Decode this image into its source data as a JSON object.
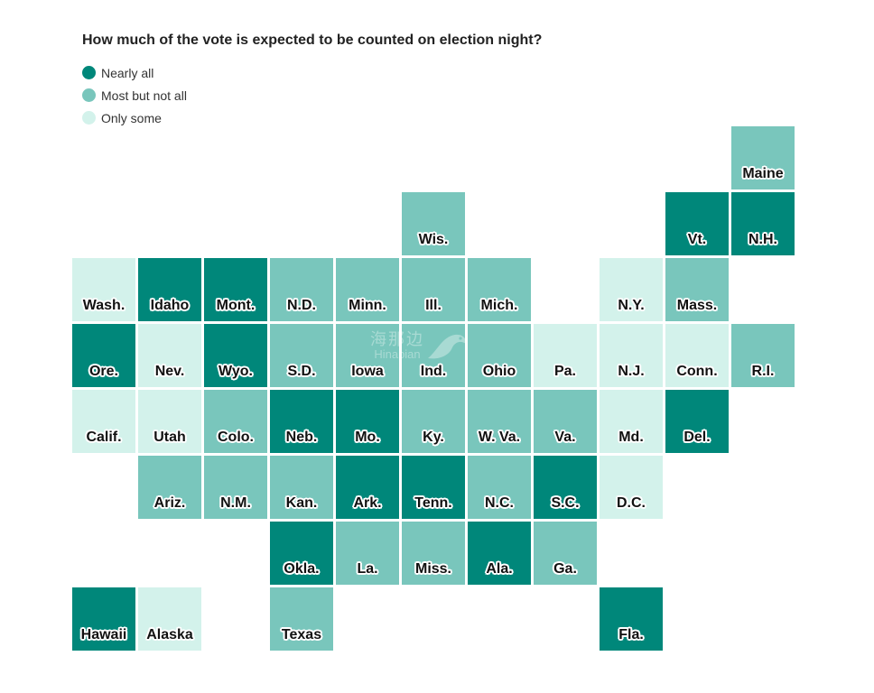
{
  "title": "How much of the vote is expected to be counted on election night?",
  "colors": {
    "nearly_all": "#00877a",
    "most": "#79c6bc",
    "some": "#d3f2eb"
  },
  "legend": [
    {
      "label": "Nearly all",
      "color": "#00877a"
    },
    {
      "label": "Most but not all",
      "color": "#79c6bc"
    },
    {
      "label": "Only some",
      "color": "#d3f2eb"
    }
  ],
  "watermark": {
    "text_cn": "海那边",
    "text_en": "Hinabian"
  },
  "states": [
    {
      "label": "Maine",
      "row": 0,
      "col": 10,
      "level": "most"
    },
    {
      "label": "Wis.",
      "row": 1,
      "col": 5,
      "level": "most"
    },
    {
      "label": "Vt.",
      "row": 1,
      "col": 9,
      "level": "nearly_all"
    },
    {
      "label": "N.H.",
      "row": 1,
      "col": 10,
      "level": "nearly_all"
    },
    {
      "label": "Wash.",
      "row": 2,
      "col": 0,
      "level": "some"
    },
    {
      "label": "Idaho",
      "row": 2,
      "col": 1,
      "level": "nearly_all"
    },
    {
      "label": "Mont.",
      "row": 2,
      "col": 2,
      "level": "nearly_all"
    },
    {
      "label": "N.D.",
      "row": 2,
      "col": 3,
      "level": "most"
    },
    {
      "label": "Minn.",
      "row": 2,
      "col": 4,
      "level": "most"
    },
    {
      "label": "Ill.",
      "row": 2,
      "col": 5,
      "level": "most"
    },
    {
      "label": "Mich.",
      "row": 2,
      "col": 6,
      "level": "most"
    },
    {
      "label": "N.Y.",
      "row": 2,
      "col": 8,
      "level": "some"
    },
    {
      "label": "Mass.",
      "row": 2,
      "col": 9,
      "level": "most"
    },
    {
      "label": "Ore.",
      "row": 3,
      "col": 0,
      "level": "nearly_all"
    },
    {
      "label": "Nev.",
      "row": 3,
      "col": 1,
      "level": "some"
    },
    {
      "label": "Wyo.",
      "row": 3,
      "col": 2,
      "level": "nearly_all"
    },
    {
      "label": "S.D.",
      "row": 3,
      "col": 3,
      "level": "most"
    },
    {
      "label": "Iowa",
      "row": 3,
      "col": 4,
      "level": "most"
    },
    {
      "label": "Ind.",
      "row": 3,
      "col": 5,
      "level": "most"
    },
    {
      "label": "Ohio",
      "row": 3,
      "col": 6,
      "level": "most"
    },
    {
      "label": "Pa.",
      "row": 3,
      "col": 7,
      "level": "some"
    },
    {
      "label": "N.J.",
      "row": 3,
      "col": 8,
      "level": "some"
    },
    {
      "label": "Conn.",
      "row": 3,
      "col": 9,
      "level": "some"
    },
    {
      "label": "R.I.",
      "row": 3,
      "col": 10,
      "level": "most"
    },
    {
      "label": "Calif.",
      "row": 4,
      "col": 0,
      "level": "some"
    },
    {
      "label": "Utah",
      "row": 4,
      "col": 1,
      "level": "some"
    },
    {
      "label": "Colo.",
      "row": 4,
      "col": 2,
      "level": "most"
    },
    {
      "label": "Neb.",
      "row": 4,
      "col": 3,
      "level": "nearly_all"
    },
    {
      "label": "Mo.",
      "row": 4,
      "col": 4,
      "level": "nearly_all"
    },
    {
      "label": "Ky.",
      "row": 4,
      "col": 5,
      "level": "most"
    },
    {
      "label": "W. Va.",
      "row": 4,
      "col": 6,
      "level": "most"
    },
    {
      "label": "Va.",
      "row": 4,
      "col": 7,
      "level": "most"
    },
    {
      "label": "Md.",
      "row": 4,
      "col": 8,
      "level": "some"
    },
    {
      "label": "Del.",
      "row": 4,
      "col": 9,
      "level": "nearly_all"
    },
    {
      "label": "Ariz.",
      "row": 5,
      "col": 1,
      "level": "most"
    },
    {
      "label": "N.M.",
      "row": 5,
      "col": 2,
      "level": "most"
    },
    {
      "label": "Kan.",
      "row": 5,
      "col": 3,
      "level": "most"
    },
    {
      "label": "Ark.",
      "row": 5,
      "col": 4,
      "level": "nearly_all"
    },
    {
      "label": "Tenn.",
      "row": 5,
      "col": 5,
      "level": "nearly_all"
    },
    {
      "label": "N.C.",
      "row": 5,
      "col": 6,
      "level": "most"
    },
    {
      "label": "S.C.",
      "row": 5,
      "col": 7,
      "level": "nearly_all"
    },
    {
      "label": "D.C.",
      "row": 5,
      "col": 8,
      "level": "some"
    },
    {
      "label": "Okla.",
      "row": 6,
      "col": 3,
      "level": "nearly_all"
    },
    {
      "label": "La.",
      "row": 6,
      "col": 4,
      "level": "most"
    },
    {
      "label": "Miss.",
      "row": 6,
      "col": 5,
      "level": "most"
    },
    {
      "label": "Ala.",
      "row": 6,
      "col": 6,
      "level": "nearly_all"
    },
    {
      "label": "Ga.",
      "row": 6,
      "col": 7,
      "level": "most"
    },
    {
      "label": "Hawaii",
      "row": 7,
      "col": 0,
      "level": "nearly_all"
    },
    {
      "label": "Alaska",
      "row": 7,
      "col": 1,
      "level": "some"
    },
    {
      "label": "Texas",
      "row": 7,
      "col": 3,
      "level": "most"
    },
    {
      "label": "Fla.",
      "row": 7,
      "col": 8,
      "level": "nearly_all"
    }
  ]
}
